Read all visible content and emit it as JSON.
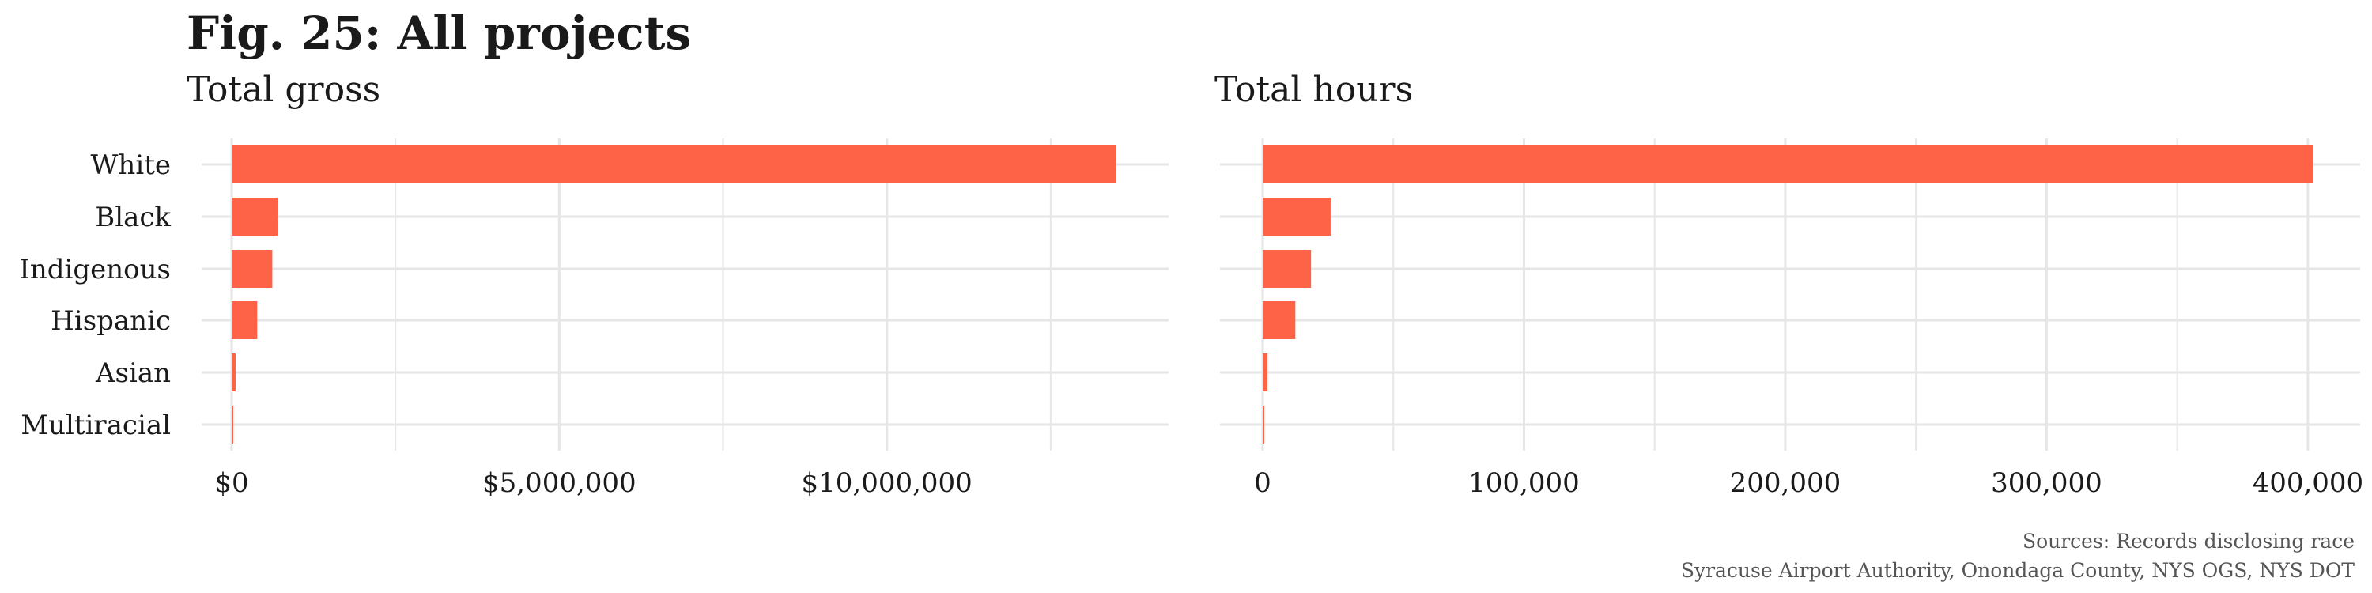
{
  "figure": {
    "title": "Fig. 25: All projects",
    "bar_color": "#ff6347",
    "grid_color": "#e6e6e6",
    "source_line1": "Sources: Records disclosing race",
    "source_line2": "Syracuse Airport Authority, Onondaga County, NYS OGS, NYS DOT"
  },
  "chart_data": [
    {
      "type": "bar",
      "orientation": "horizontal",
      "title": "Total gross",
      "categories": [
        "White",
        "Black",
        "Indigenous",
        "Hispanic",
        "Asian",
        "Multiracial"
      ],
      "values": [
        13500000,
        700000,
        620000,
        390000,
        60000,
        20000
      ],
      "xlim": [
        0,
        14300000
      ],
      "ticks": [
        0,
        5000000,
        10000000
      ],
      "tick_labels": [
        "$0",
        "$5,000,000",
        "$10,000,000"
      ],
      "minor_ticks": [
        2500000,
        7500000,
        12500000
      ],
      "grid": true
    },
    {
      "type": "bar",
      "orientation": "horizontal",
      "title": "Total hours",
      "categories": [
        "White",
        "Black",
        "Indigenous",
        "Hispanic",
        "Asian",
        "Multiracial"
      ],
      "values": [
        402000,
        26000,
        18500,
        12500,
        1800,
        600
      ],
      "xlim": [
        0,
        420000
      ],
      "ticks": [
        0,
        100000,
        200000,
        300000,
        400000
      ],
      "tick_labels": [
        "0",
        "100,000",
        "200,000",
        "300,000",
        "400,000"
      ],
      "minor_ticks": [
        50000,
        150000,
        250000,
        350000
      ],
      "grid": true
    }
  ]
}
